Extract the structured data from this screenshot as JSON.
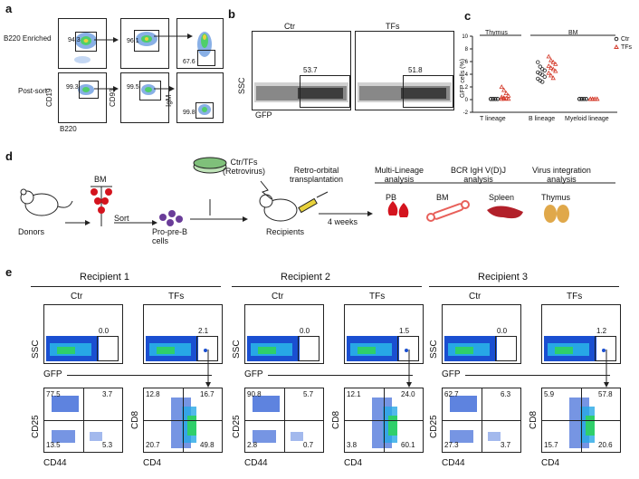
{
  "panels": {
    "a": "a",
    "b": "b",
    "c": "c",
    "d": "d",
    "e": "e"
  },
  "panel_a": {
    "row_labels": [
      "B220 Enriched",
      "Post-sort"
    ],
    "xlabel": "B220",
    "ylabels": [
      "CD19",
      "CD93",
      "IgM"
    ],
    "values": {
      "r1c1": "94.3",
      "r1c2": "96.1",
      "r1c3": "67.6",
      "r2c1": "99.3",
      "r2c2": "99.5",
      "r2c3": "99.8"
    }
  },
  "panel_b": {
    "titles": [
      "Ctr",
      "TFs"
    ],
    "ylabel": "SSC",
    "xlabel": "GFP",
    "values": [
      "53.7",
      "51.8"
    ]
  },
  "chart_data": {
    "type": "scatter",
    "title": "",
    "ylabel": "GFP cells (%)",
    "ylim": [
      -2,
      10
    ],
    "yticks": [
      "-2",
      "0",
      "2",
      "4",
      "6",
      "8",
      "10"
    ],
    "group_headers": [
      "Thymus",
      "BM"
    ],
    "categories": [
      "T lineage",
      "B lineage",
      "Myeloid lineage"
    ],
    "legend": [
      "Ctr",
      "TFs"
    ],
    "legend_position": "top-right",
    "series": [
      {
        "name": "Ctr",
        "marker": "circle",
        "values_by_category": [
          [
            0.1,
            0.1,
            0.1,
            0.1,
            0.1,
            0.1,
            0.1,
            0.1,
            0.1,
            0.1
          ],
          [
            5.9,
            5.2,
            4.8,
            4.6,
            4.3,
            4.1,
            3.9,
            3.6,
            3.3,
            3.0,
            2.8
          ],
          [
            0.1,
            0.1,
            0.1,
            0.1,
            0.1,
            0.1,
            0.1,
            0.1,
            0.1,
            0.1
          ]
        ]
      },
      {
        "name": "TFs",
        "marker": "triangle",
        "values_by_category": [
          [
            2.0,
            1.5,
            1.0,
            0.6,
            0.4,
            0.3,
            0.2,
            0.1,
            0.1,
            0.1
          ],
          [
            6.8,
            6.2,
            5.9,
            5.6,
            5.3,
            5.0,
            4.8,
            4.5,
            4.2,
            3.8,
            3.4
          ],
          [
            0.1,
            0.1,
            0.1,
            0.1,
            0.1,
            0.1,
            0.1,
            0.1,
            0.1,
            0.1
          ]
        ]
      }
    ]
  },
  "panel_d": {
    "donors": "Donors",
    "bm": "BM",
    "sort": "Sort",
    "cells": "Pro-pre-B\ncells",
    "retro": "Ctr/TFs\n(Retrovirus)",
    "transplant": "Retro-orbital\ntransplantation",
    "recipients": "Recipients",
    "weeks": "4 weeks",
    "analyses": [
      "Multi-Lineage\nanalysis",
      "BCR IgH V(D)J\nanalysis",
      "Virus integration\nanalysis"
    ],
    "tissues": [
      "PB",
      "BM",
      "Spleen",
      "Thymus"
    ],
    "colors": {
      "blood": "#d4141e",
      "bone": "#e8605a",
      "spleen": "#b2202a",
      "thymus": "#e0a84a",
      "cells": "#6a3d99"
    }
  },
  "panel_e": {
    "recipients": [
      {
        "title": "Recipient 1",
        "ctr": "0.0",
        "tfs": "2.1",
        "cd25": [
          "77.5",
          "3.7",
          "13.5",
          "5.3"
        ],
        "cd8": [
          "12.8",
          "16.7",
          "20.7",
          "49.8"
        ]
      },
      {
        "title": "Recipient 2",
        "ctr": "0.0",
        "tfs": "1.5",
        "cd25": [
          "90.8",
          "5.7",
          "2.8",
          "0.7"
        ],
        "cd8": [
          "12.1",
          "24.0",
          "3.8",
          "60.1"
        ]
      },
      {
        "title": "Recipient 3",
        "ctr": "0.0",
        "tfs": "1.2",
        "cd25": [
          "62.7",
          "6.3",
          "27.3",
          "3.7"
        ],
        "cd8": [
          "5.9",
          "57.8",
          "15.7",
          "20.6"
        ]
      }
    ],
    "ctr_label": "Ctr",
    "tfs_label": "TFs",
    "ssc": "SSC",
    "gfp": "GFP",
    "cd25": "CD25",
    "cd8": "CD8",
    "cd44": "CD44",
    "cd4": "CD4"
  }
}
